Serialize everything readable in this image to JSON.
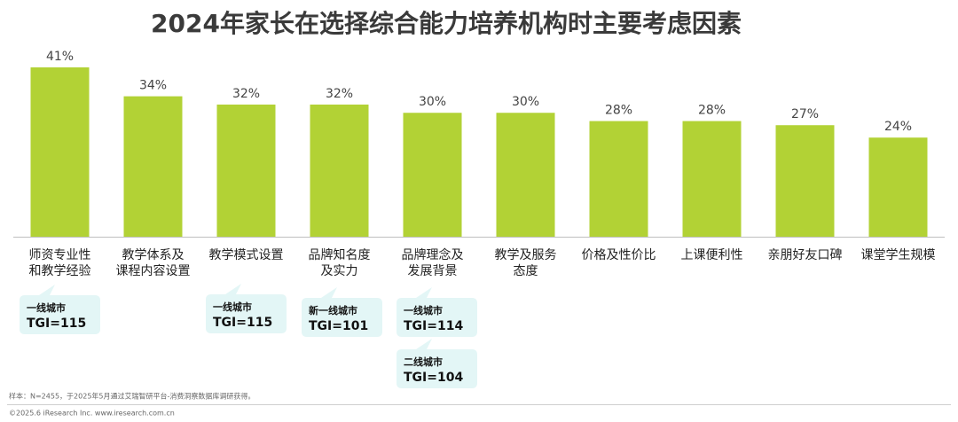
{
  "chart_data": {
    "type": "bar",
    "title": "2024年家长在选择综合能力培养机构时主要考虑因素",
    "categories": [
      [
        "师资专业性",
        "和教学经验"
      ],
      [
        "教学体系及",
        "课程内容设置"
      ],
      [
        "教学模式设置"
      ],
      [
        "品牌知名度",
        "及实力"
      ],
      [
        "品牌理念及",
        "发展背景"
      ],
      [
        "教学及服务",
        "态度"
      ],
      [
        "价格及性价比"
      ],
      [
        "上课便利性"
      ],
      [
        "亲朋好友口碑"
      ],
      [
        "课堂学生规模"
      ]
    ],
    "values": [
      41,
      34,
      32,
      32,
      30,
      30,
      28,
      28,
      27,
      24
    ],
    "value_labels": [
      "41%",
      "34%",
      "32%",
      "32%",
      "30%",
      "30%",
      "28%",
      "28%",
      "27%",
      "24%"
    ],
    "color": "#b2d235",
    "annotations": [
      [
        "一线城市",
        "TGI=115"
      ],
      [
        "一线城市",
        "TGI=115"
      ],
      [
        "新一线城市",
        "TGI=101"
      ],
      [
        "一线城市",
        "TGI=114"
      ],
      [
        "二线城市",
        "TGI=104"
      ]
    ],
    "note": "样本：N=2455，于2025年5月通过艾瑞智研平台-消费洞察数据库调研获得。",
    "source": "©2025.6 iResearch Inc. www.iresearch.com.cn"
  }
}
